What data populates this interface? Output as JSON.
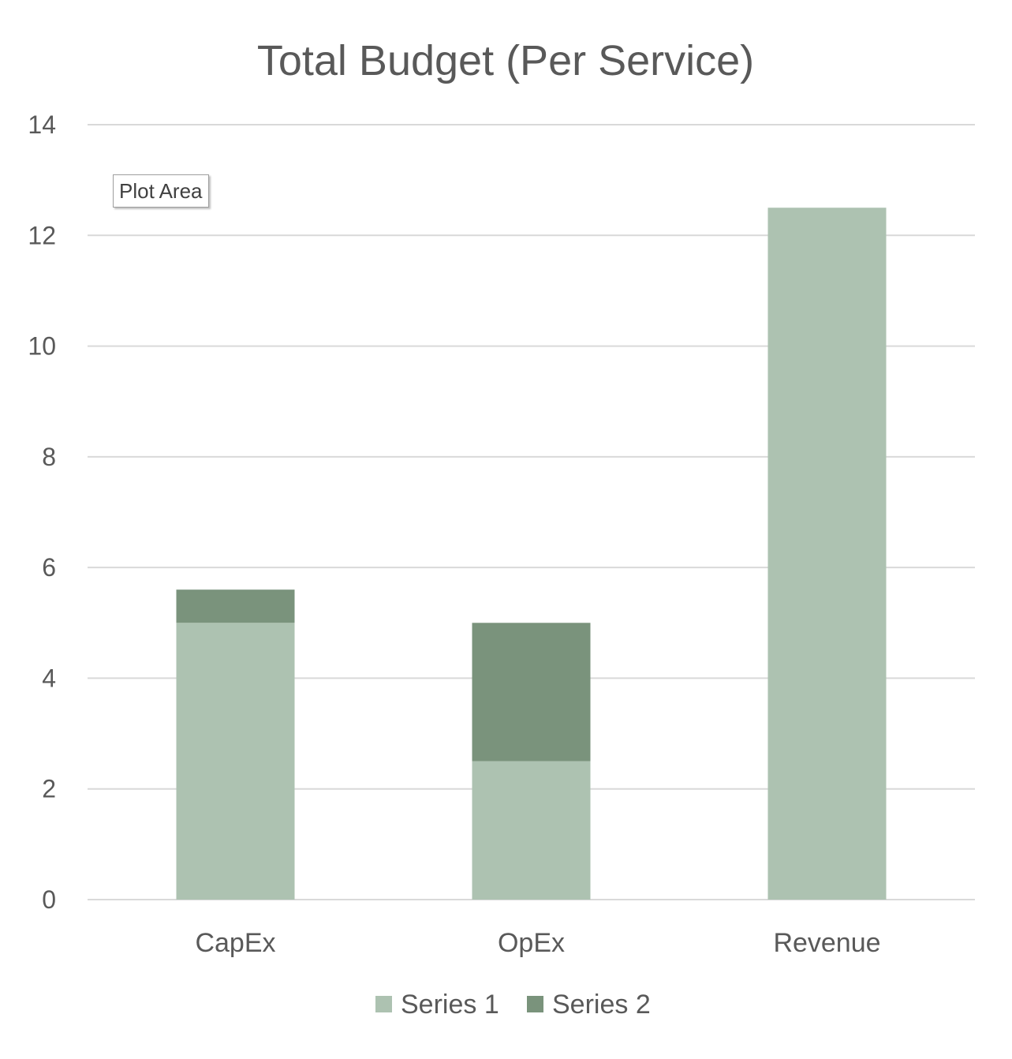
{
  "chart_data": {
    "type": "bar",
    "stacked": true,
    "title": "Total Budget (Per Service)",
    "categories": [
      "CapEx",
      "OpEx",
      "Revenue"
    ],
    "series": [
      {
        "name": "Series 1",
        "values": [
          5,
          2.5,
          12.5
        ],
        "color": "#adc2b1"
      },
      {
        "name": "Series 2",
        "values": [
          0.6,
          2.5,
          0
        ],
        "color": "#7a937c"
      }
    ],
    "ylim": [
      0,
      14
    ],
    "yticks": [
      0,
      2,
      4,
      6,
      8,
      10,
      12,
      14
    ],
    "grid": true,
    "legend": "bottom",
    "xlabel": "",
    "ylabel": ""
  },
  "tooltip": {
    "text": "Plot Area"
  }
}
